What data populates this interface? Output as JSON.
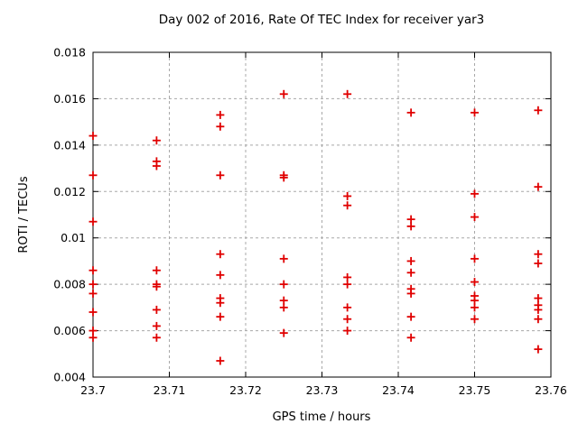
{
  "chart_data": {
    "type": "scatter",
    "title": "Day 002 of 2016, Rate Of TEC Index for receiver yar3",
    "xlabel": "GPS time / hours",
    "ylabel": "ROTI / TECUs",
    "xlim": [
      23.7,
      23.76
    ],
    "ylim": [
      0.004,
      0.018
    ],
    "x_ticks": [
      23.7,
      23.71,
      23.72,
      23.73,
      23.74,
      23.75,
      23.76
    ],
    "x_tick_labels": [
      "23.7",
      "23.71",
      "23.72",
      "23.73",
      "23.74",
      "23.75",
      "23.76"
    ],
    "y_ticks": [
      0.004,
      0.006,
      0.008,
      0.01,
      0.012,
      0.014,
      0.016,
      0.018
    ],
    "y_tick_labels": [
      "0.004",
      "0.006",
      "0.008",
      "0.01",
      "0.012",
      "0.014",
      "0.016",
      "0.018"
    ],
    "grid": true,
    "legend": "none",
    "marker": "plus",
    "marker_color": "#e00000",
    "grid_color": "#a8a8a8",
    "axis_color": "#000000",
    "series": [
      {
        "name": "ROTI",
        "points": [
          [
            23.7,
            0.0144
          ],
          [
            23.7,
            0.0127
          ],
          [
            23.7,
            0.0107
          ],
          [
            23.7,
            0.0086
          ],
          [
            23.7,
            0.008
          ],
          [
            23.7,
            0.0076
          ],
          [
            23.7,
            0.0068
          ],
          [
            23.7,
            0.006
          ],
          [
            23.7,
            0.0057
          ],
          [
            23.70833,
            0.0142
          ],
          [
            23.70833,
            0.0133
          ],
          [
            23.70833,
            0.0131
          ],
          [
            23.70833,
            0.0086
          ],
          [
            23.70833,
            0.008
          ],
          [
            23.70833,
            0.0079
          ],
          [
            23.70833,
            0.0069
          ],
          [
            23.70833,
            0.0062
          ],
          [
            23.70833,
            0.0057
          ],
          [
            23.71667,
            0.0153
          ],
          [
            23.71667,
            0.0148
          ],
          [
            23.71667,
            0.0127
          ],
          [
            23.71667,
            0.0093
          ],
          [
            23.71667,
            0.0084
          ],
          [
            23.71667,
            0.0074
          ],
          [
            23.71667,
            0.0072
          ],
          [
            23.71667,
            0.0066
          ],
          [
            23.71667,
            0.0047
          ],
          [
            23.725,
            0.0162
          ],
          [
            23.725,
            0.0127
          ],
          [
            23.725,
            0.0126
          ],
          [
            23.725,
            0.0091
          ],
          [
            23.725,
            0.008
          ],
          [
            23.725,
            0.0073
          ],
          [
            23.725,
            0.007
          ],
          [
            23.725,
            0.0059
          ],
          [
            23.73333,
            0.0162
          ],
          [
            23.73333,
            0.0118
          ],
          [
            23.73333,
            0.0114
          ],
          [
            23.73333,
            0.0083
          ],
          [
            23.73333,
            0.008
          ],
          [
            23.73333,
            0.007
          ],
          [
            23.73333,
            0.0065
          ],
          [
            23.73333,
            0.006
          ],
          [
            23.74167,
            0.0154
          ],
          [
            23.74167,
            0.0108
          ],
          [
            23.74167,
            0.0105
          ],
          [
            23.74167,
            0.009
          ],
          [
            23.74167,
            0.0085
          ],
          [
            23.74167,
            0.0078
          ],
          [
            23.74167,
            0.0076
          ],
          [
            23.74167,
            0.0066
          ],
          [
            23.74167,
            0.0057
          ],
          [
            23.75,
            0.0154
          ],
          [
            23.75,
            0.0119
          ],
          [
            23.75,
            0.0109
          ],
          [
            23.75,
            0.0091
          ],
          [
            23.75,
            0.0081
          ],
          [
            23.75,
            0.0075
          ],
          [
            23.75,
            0.0073
          ],
          [
            23.75,
            0.007
          ],
          [
            23.75,
            0.0065
          ],
          [
            23.75833,
            0.0155
          ],
          [
            23.75833,
            0.0122
          ],
          [
            23.75833,
            0.0093
          ],
          [
            23.75833,
            0.0089
          ],
          [
            23.75833,
            0.0074
          ],
          [
            23.75833,
            0.0071
          ],
          [
            23.75833,
            0.0069
          ],
          [
            23.75833,
            0.0065
          ],
          [
            23.75833,
            0.0052
          ]
        ]
      }
    ]
  }
}
